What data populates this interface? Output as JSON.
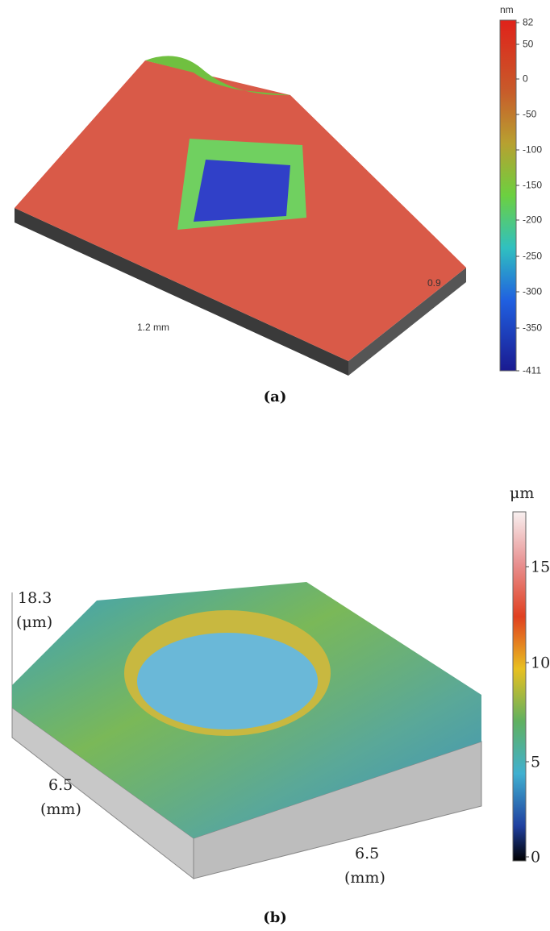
{
  "panels": [
    {
      "label": "(a)",
      "colorbar": {
        "unit": "nm",
        "ticks": [
          "82",
          "50",
          "0",
          "-50",
          "-100",
          "-150",
          "-200",
          "-250",
          "-300",
          "-350",
          "-411"
        ]
      },
      "axis_labels": [
        "0.9",
        "1.2 mm"
      ]
    },
    {
      "label": "(b)",
      "colorbar": {
        "unit": "μm",
        "ticks": [
          "15",
          "10",
          "5",
          "0"
        ]
      },
      "axis_labels": [
        "18.3",
        "(μm)",
        "6.5",
        "(mm)",
        "6.5",
        "(mm)"
      ]
    }
  ]
}
